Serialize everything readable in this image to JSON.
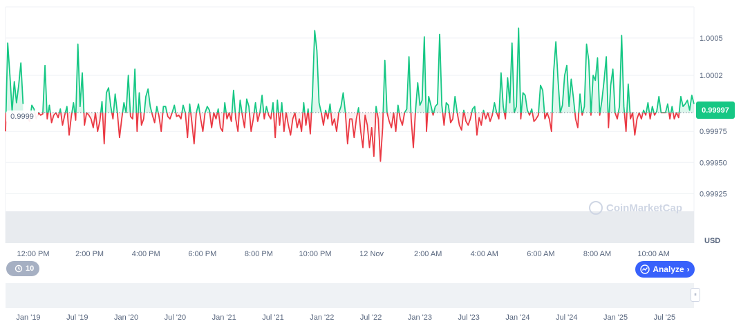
{
  "chart_data": {
    "type": "line",
    "title": "",
    "currency_label": "USD",
    "baseline_value": 0.9999,
    "baseline_label": "0.9999",
    "current_value": 0.99997,
    "current_label": "0.99997",
    "ylim": [
      0.99913,
      1.00075
    ],
    "y_ticks": [
      {
        "value": 1.0005,
        "label": "1.0005"
      },
      {
        "value": 1.0002,
        "label": "1.0002"
      },
      {
        "value": 0.99975,
        "label": "0.99975"
      },
      {
        "value": 0.9995,
        "label": "0.99950"
      },
      {
        "value": 0.99925,
        "label": "0.99925"
      }
    ],
    "x_tick_labels": [
      "12:00 PM",
      "2:00 PM",
      "4:00 PM",
      "6:00 PM",
      "8:00 PM",
      "10:00 PM",
      "12 Nov",
      "2:00 AM",
      "4:00 AM",
      "6:00 AM",
      "8:00 AM",
      "10:00 AM"
    ],
    "series": [
      {
        "values": [
          0.99975,
          1.00046,
          1.0002,
          0.99991,
          1.00015,
          0.99998,
          1.00012,
          1.0003,
          0.99997,
          null,
          0.99986,
          0.99983,
          0.99996,
          0.99993,
          0.99985,
          0.9999,
          0.99988,
          0.99989,
          1.00028,
          0.99985,
          0.99996,
          0.99982,
          0.99988,
          0.9999,
          0.99986,
          0.99993,
          0.9998,
          0.99988,
          0.99995,
          0.99972,
          0.99987,
          0.99998,
          0.99984,
          1.00045,
          0.99995,
          1.00022,
          0.9998,
          0.9999,
          0.99988,
          0.99985,
          0.99978,
          0.9999,
          0.99975,
          0.99983,
          0.99999,
          0.99965,
          1.00006,
          1.0001,
          0.99995,
          0.99985,
          1.00005,
          0.9999,
          0.9997,
          0.99985,
          0.99998,
          0.9999,
          1.0002,
          0.99987,
          0.99985,
          1.00025,
          0.99975,
          1.00006,
          0.9998,
          0.99985,
          1.00003,
          1.00009,
          0.99995,
          0.99988,
          0.99982,
          0.99995,
          0.99987,
          0.99975,
          0.99995,
          0.99995,
          0.99987,
          0.99985,
          0.9999,
          0.99996,
          0.99987,
          0.99988,
          0.99985,
          0.99996,
          0.9999,
          0.9997,
          0.99997,
          0.99982,
          0.99965,
          0.9999,
          0.99997,
          0.99985,
          0.99975,
          0.9999,
          0.99995,
          0.99992,
          0.99978,
          0.9999,
          0.99985,
          0.99993,
          0.99978,
          0.99975,
          0.99998,
          0.99985,
          0.9999,
          0.99983,
          1.00008,
          0.99985,
          0.99975,
          1.0,
          0.99988,
          0.99978,
          1.00001,
          0.99995,
          0.99975,
          0.99985,
          0.99998,
          0.99983,
          0.9999,
          1.00004,
          0.99985,
          0.99995,
          0.99988,
          0.99985,
          0.99998,
          0.9997,
          1.0,
          0.9998,
          0.99998,
          0.99975,
          0.9999,
          0.9998,
          0.99972,
          0.99985,
          0.9999,
          0.99978,
          0.99985,
          0.99975,
          0.99998,
          0.9998,
          0.99993,
          0.99973,
          1.00005,
          1.00056,
          1.0004,
          0.99998,
          0.9999,
          0.9998,
          0.99992,
          0.99985,
          0.99997,
          0.9998,
          0.99985,
          0.99975,
          0.9999,
          0.99995,
          1.00006,
          0.9999,
          0.99965,
          0.99985,
          0.99985,
          0.9997,
          0.99985,
          0.99994,
          0.99975,
          0.99962,
          0.99988,
          0.9998,
          0.99962,
          0.99978,
          0.99955,
          0.99995,
          0.99985,
          0.99951,
          0.99978,
          1.00032,
          0.9999,
          0.99983,
          0.99978,
          0.9999,
          0.99975,
          0.99996,
          0.99985,
          0.9998,
          0.9999,
          0.99993,
          1.00035,
          0.99985,
          0.99962,
          0.99992,
          1.00014,
          0.99996,
          1.0,
          1.00051,
          0.99975,
          1.00003,
          0.99996,
          0.99988,
          0.99995,
          0.99997,
          1.00053,
          0.99996,
          0.9998,
          0.99998,
          0.99996,
          0.99982,
          0.99985,
          1.00003,
          0.9999,
          0.9998,
          0.99976,
          0.99992,
          0.99983,
          0.9998,
          0.99985,
          0.99993,
          0.99995,
          0.99972,
          0.99986,
          0.9998,
          0.99992,
          0.99985,
          0.9999,
          0.99983,
          0.99988,
          0.99998,
          0.9999,
          0.99985,
          1.00022,
          0.99995,
          0.99985,
          1.00018,
          0.99998,
          1.00046,
          0.9999,
          0.99995,
          1.00058,
          0.99985,
          1.00006,
          1.00004,
          0.99992,
          0.99988,
          0.99993,
          0.99983,
          0.99985,
          0.99988,
          1.00012,
          1.00008,
          0.99985,
          0.9999,
          0.99985,
          0.99975,
          1.00023,
          1.00047,
          1.00016,
          0.9999,
          0.99996,
          1.0002,
          1.00028,
          0.99995,
          1.00017,
          1.00002,
          0.99985,
          0.99978,
          1.00005,
          0.99988,
          0.99995,
          1.00045,
          1.00032,
          0.99988,
          1.0002,
          1.00016,
          1.00034,
          0.99988,
          1.0,
          1.00016,
          1.00035,
          0.99978,
          1.00012,
          1.00025,
          0.9999,
          0.99985,
          0.99995,
          1.00052,
          0.99995,
          0.99975,
          1.00013,
          0.99985,
          0.9999,
          0.99972,
          0.99985,
          0.9999,
          0.99985,
          0.99992,
          0.99988,
          0.99998,
          0.99985,
          0.99995,
          0.99988,
          0.99991,
          1.00003,
          0.9999,
          0.9999,
          0.9999,
          0.99997,
          0.99985,
          0.99995,
          0.99985,
          0.9999,
          0.99986,
          1.00003,
          0.99995,
          0.99997,
          1.0,
          0.99992,
          1.00004,
          0.99997
        ]
      }
    ],
    "grid": true,
    "legend": "none",
    "colors": {
      "up": "#16c784",
      "down": "#ea3943",
      "grid": "#eff2f5",
      "volume": "#e8ebef"
    }
  },
  "navigator": {
    "tick_labels": [
      "Jan '19",
      "Jul '19",
      "Jan '20",
      "Jul '20",
      "Jan '21",
      "Jul '21",
      "Jan '22",
      "Jul '22",
      "Jan '23",
      "Jul '23",
      "Jan '24",
      "Jul '24",
      "Jan '25",
      "Jul '25"
    ]
  },
  "controls": {
    "history_count": "10",
    "analyze_label": "Analyze",
    "analyze_chevron": "›",
    "history_icon": "history-icon",
    "handle_glyph": "⏸"
  },
  "watermark": {
    "text": "CoinMarketCap"
  }
}
